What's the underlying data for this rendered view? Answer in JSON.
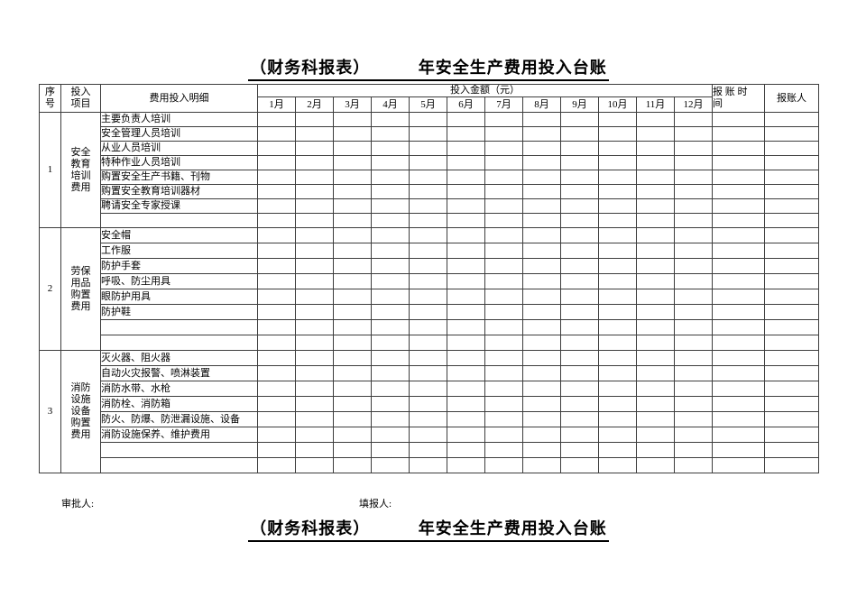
{
  "titles": {
    "top": "（财务科报表）　　　 年安全生产费用投入台账",
    "bottom": "（财务科报表）　　　 年安全生产费用投入台账"
  },
  "table": {
    "header": {
      "seq": "序\n号",
      "item": "投入\n项目",
      "detail": "费用投入明细",
      "amount": "投入金额（元）",
      "time": "报 账 时\n间",
      "person": "报账人"
    },
    "months": [
      "1月",
      "2月",
      "3月",
      "4月",
      "5月",
      "6月",
      "7月",
      "8月",
      "9月",
      "10月",
      "11月",
      "12月"
    ],
    "sections": [
      {
        "seq": "1",
        "item": "安全\n教育\n培训\n费用",
        "details": [
          "主要负责人培训",
          "安全管理人员培训",
          "从业人员培训",
          "特种作业人员培训",
          "购置安全生产书籍、刊物",
          "购置安全教育培训器材",
          "聘请安全专家授课",
          ""
        ]
      },
      {
        "seq": "2",
        "item": "劳保\n用品\n购置\n费用",
        "details": [
          "安全帽",
          "工作服",
          "防护手套",
          "呼吸、防尘用具",
          "眼防护用具",
          "防护鞋",
          "",
          ""
        ]
      },
      {
        "seq": "3",
        "item": "消防\n设施\n设备\n购置\n费用",
        "details": [
          "灭火器、阻火器",
          "自动火灾报警、喷淋装置",
          "消防水带、水枪",
          "消防栓、消防箱",
          "防火、防爆、防泄漏设施、设备",
          "消防设施保养、维护费用",
          "",
          ""
        ]
      }
    ]
  },
  "footer": {
    "approver": "审批人:",
    "filler": "填报人:"
  },
  "colors": {
    "border": "#3d3d3d",
    "text": "#000000",
    "background": "#ffffff"
  }
}
